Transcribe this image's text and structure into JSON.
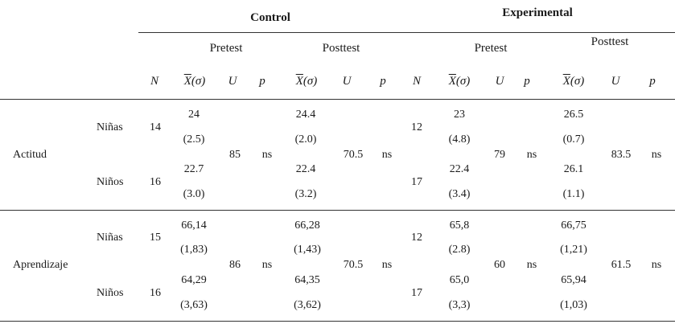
{
  "groups": {
    "control": "Control",
    "experimental": "Experimental"
  },
  "phases": {
    "pretest": "Pretest",
    "posttest": "Posttest"
  },
  "columns": {
    "n": "N",
    "x": "X",
    "sigma": "(σ)",
    "u": "U",
    "p": "p"
  },
  "rows": [
    {
      "label": "Actitud",
      "sub": [
        {
          "label": "Niñas",
          "c_n": "14",
          "c_pre_mean": "24",
          "c_pre_sd": "(2.5)",
          "c_post_mean": "24.4",
          "c_post_sd": "(2.0)",
          "e_n": "12",
          "e_pre_mean": "23",
          "e_pre_sd": "(4.8)",
          "e_post_mean": "26.5",
          "e_post_sd": "(0.7)"
        },
        {
          "label": "Niños",
          "c_n": "16",
          "c_pre_mean": "22.7",
          "c_pre_sd": "(3.0)",
          "c_post_mean": "22.4",
          "c_post_sd": "(3.2)",
          "e_n": "17",
          "e_pre_mean": "22.4",
          "e_pre_sd": "(3.4)",
          "e_post_mean": "26.1",
          "e_post_sd": "(1.1)"
        }
      ],
      "c_pre_u": "85",
      "c_pre_p": "ns",
      "c_post_u": "70.5",
      "c_post_p": "ns",
      "e_pre_u": "79",
      "e_pre_p": "ns",
      "e_post_u": "83.5",
      "e_post_p": "ns"
    },
    {
      "label": "Aprendizaje",
      "sub": [
        {
          "label": "Niñas",
          "c_n": "15",
          "c_pre_mean": "66,14",
          "c_pre_sd": "(1,83)",
          "c_post_mean": "66,28",
          "c_post_sd": "(1,43)",
          "e_n": "12",
          "e_pre_mean": "65,8",
          "e_pre_sd": "(2.8)",
          "e_post_mean": "66,75",
          "e_post_sd": "(1,21)"
        },
        {
          "label": "Niños",
          "c_n": "16",
          "c_pre_mean": "64,29",
          "c_pre_sd": "(3,63)",
          "c_post_mean": "64,35",
          "c_post_sd": "(3,62)",
          "e_n": "17",
          "e_pre_mean": "65,0",
          "e_pre_sd": "(3,3)",
          "e_post_mean": "65,94",
          "e_post_sd": "(1,03)"
        }
      ],
      "c_pre_u": "86",
      "c_pre_p": "ns",
      "c_post_u": "70.5",
      "c_post_p": "ns",
      "e_pre_u": "60",
      "e_pre_p": "ns",
      "e_post_u": "61.5",
      "e_post_p": "ns"
    }
  ]
}
